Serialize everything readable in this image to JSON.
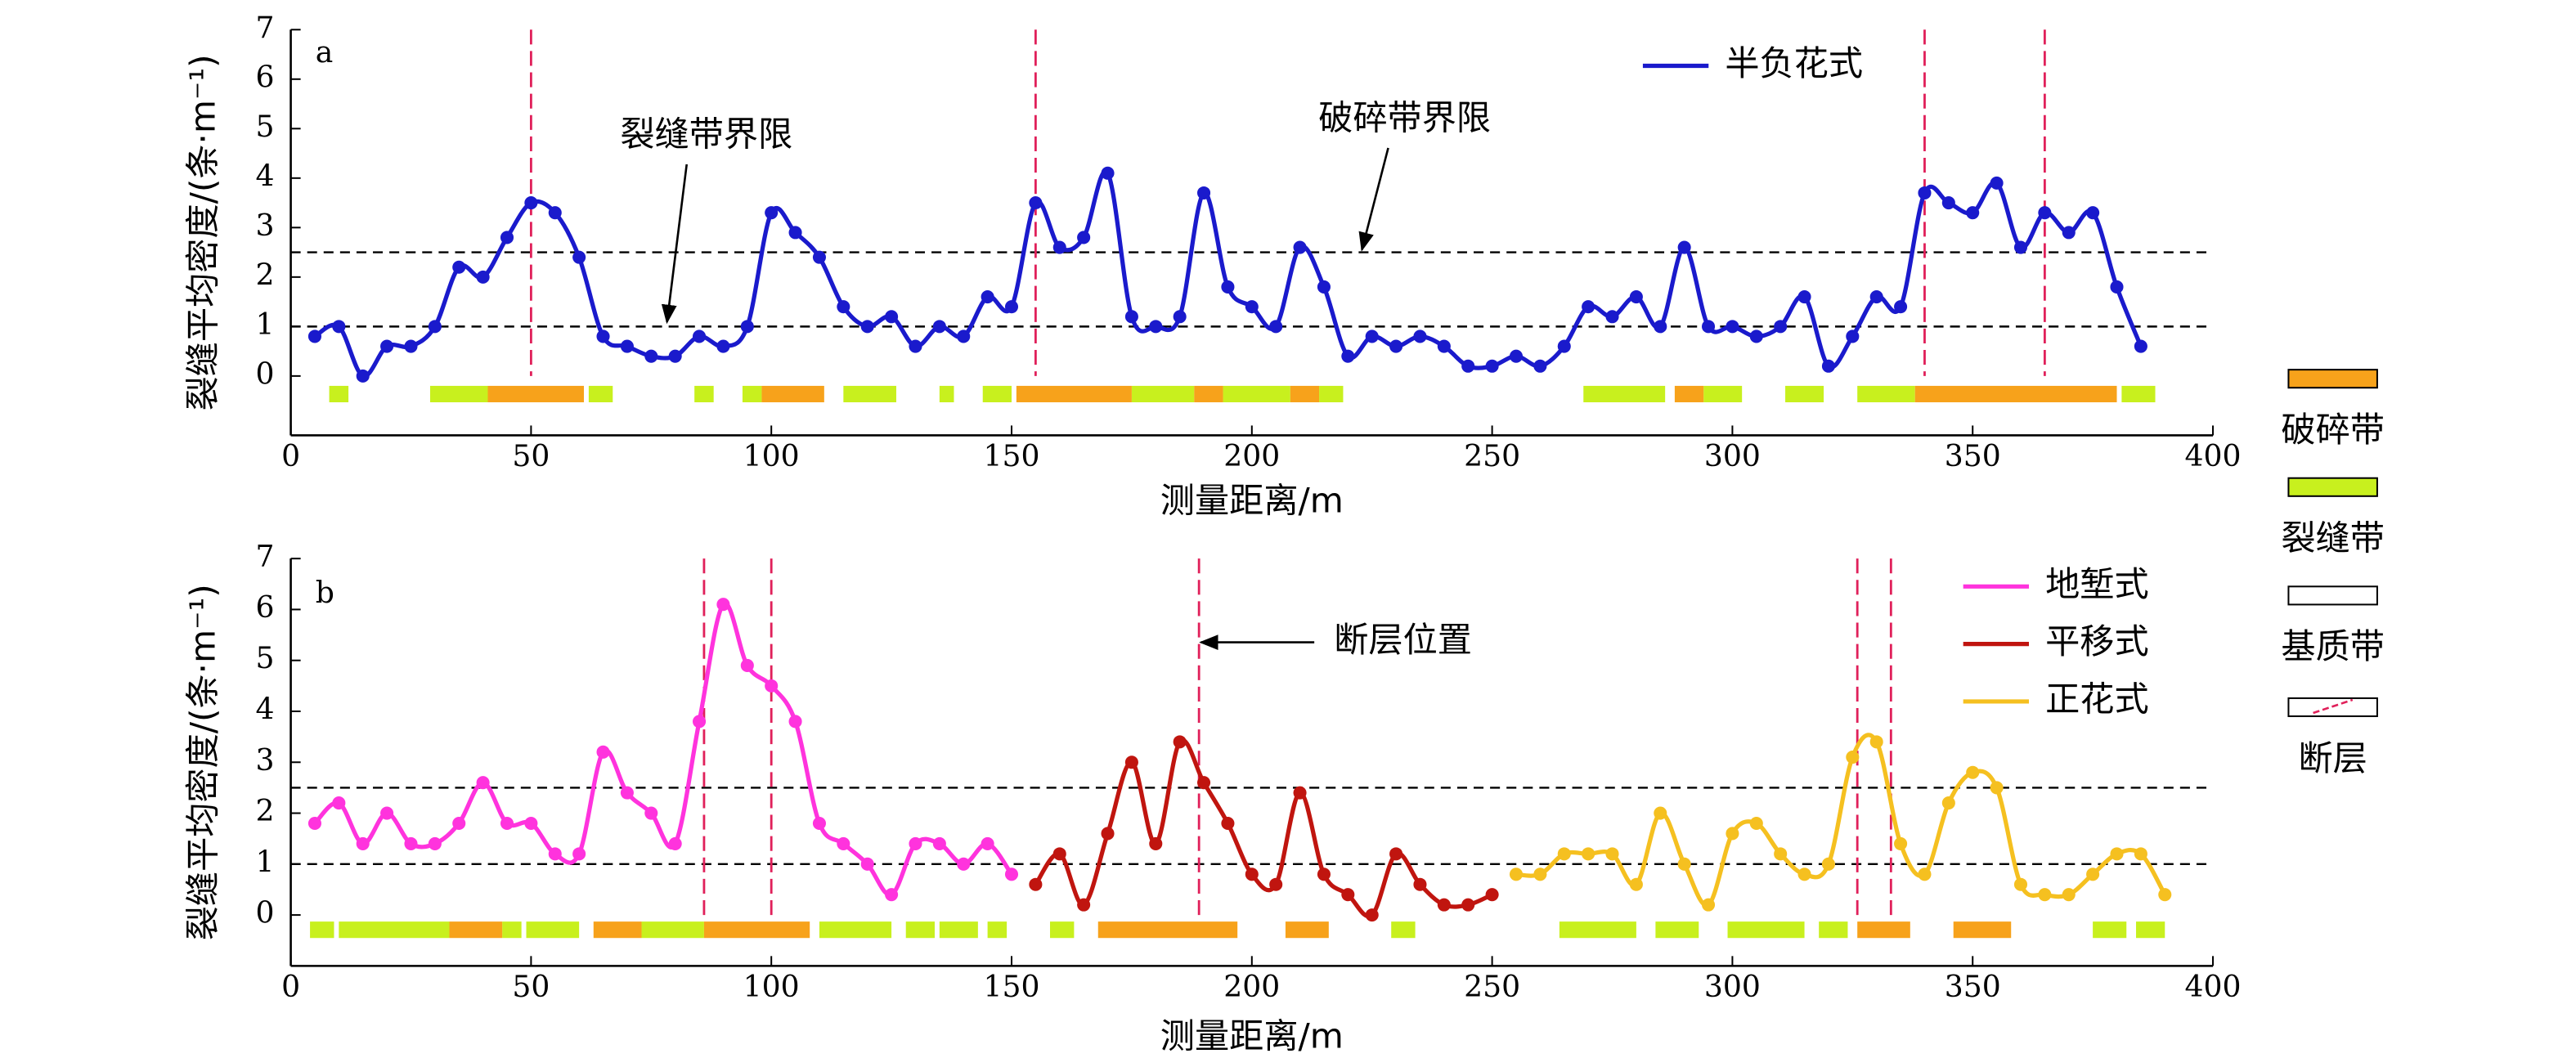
{
  "side_legend": [
    {
      "label": "破碎带",
      "color": "#f7a21b"
    },
    {
      "label": "裂缝带",
      "color": "#c8f01e"
    },
    {
      "label": "基质带",
      "color": "#ffffff"
    },
    {
      "label": "断层",
      "color": "#ffffff"
    }
  ],
  "chart_data": [
    {
      "type": "line",
      "panel_label": "a",
      "x_label": "测量距离/m",
      "y_label": "裂缝平均密度/(条·m⁻¹)",
      "xlim": [
        0,
        400
      ],
      "xticks": [
        0,
        50,
        100,
        150,
        200,
        250,
        300,
        350,
        400
      ],
      "ylim": [
        -1.2,
        7
      ],
      "yticks": [
        0,
        1,
        2,
        3,
        4,
        5,
        6,
        7
      ],
      "thresholds": [
        1,
        2.5
      ],
      "faults": [
        50,
        155,
        340,
        365
      ],
      "fault_color": "#e0205a",
      "annotations": [
        "裂缝带界限",
        "破碎带界限"
      ],
      "legend": "upper right",
      "series": [
        {
          "name": "半负花式",
          "color": "#1a1acc",
          "x": [
            5,
            10,
            15,
            20,
            25,
            30,
            35,
            40,
            45,
            50,
            55,
            60,
            65,
            70,
            75,
            80,
            85,
            90,
            95,
            100,
            105,
            110,
            115,
            120,
            125,
            130,
            135,
            140,
            145,
            150,
            155,
            160,
            165,
            170,
            175,
            180,
            185,
            190,
            195,
            200,
            205,
            210,
            215,
            220,
            225,
            230,
            235,
            240,
            245,
            250,
            255,
            260,
            265,
            270,
            275,
            280,
            285,
            290,
            295,
            300,
            305,
            310,
            315,
            320,
            325,
            330,
            335,
            340,
            345,
            350,
            355,
            360,
            365,
            370,
            375,
            380,
            385
          ],
          "values": [
            0.8,
            1.0,
            0,
            0.6,
            0.6,
            1.0,
            2.2,
            2.0,
            2.8,
            3.5,
            3.3,
            2.4,
            0.8,
            0.6,
            0.4,
            0.4,
            0.8,
            0.6,
            1.0,
            3.3,
            2.9,
            2.4,
            1.4,
            1.0,
            1.2,
            0.6,
            1.0,
            0.8,
            1.6,
            1.4,
            3.5,
            2.6,
            2.8,
            4.1,
            1.2,
            1.0,
            1.2,
            3.7,
            1.8,
            1.4,
            1.0,
            2.6,
            1.8,
            0.4,
            0.8,
            0.6,
            0.8,
            0.6,
            0.2,
            0.2,
            0.4,
            0.2,
            0.6,
            1.4,
            1.2,
            1.6,
            1.0,
            2.6,
            1.0,
            1.0,
            0.8,
            1.0,
            1.6,
            0.2,
            0.8,
            1.6,
            1.4,
            3.7,
            3.5,
            3.3,
            3.9,
            2.6,
            3.3,
            2.9,
            3.3,
            1.8,
            0.6
          ]
        }
      ],
      "broken_zones": [
        [
          41,
          61
        ],
        [
          98,
          111
        ],
        [
          151,
          175
        ],
        [
          188,
          194
        ],
        [
          208,
          214
        ],
        [
          288,
          294
        ],
        [
          338,
          380
        ]
      ],
      "fracture_zones": [
        [
          8,
          12
        ],
        [
          29,
          41
        ],
        [
          62,
          67
        ],
        [
          84,
          88
        ],
        [
          94,
          98
        ],
        [
          115,
          126
        ],
        [
          135,
          138
        ],
        [
          144,
          150
        ],
        [
          175,
          188
        ],
        [
          194,
          208
        ],
        [
          214,
          219
        ],
        [
          269,
          286
        ],
        [
          294,
          302
        ],
        [
          311,
          319
        ],
        [
          326,
          338
        ],
        [
          381,
          388
        ]
      ]
    },
    {
      "type": "line",
      "panel_label": "b",
      "x_label": "测量距离/m",
      "y_label": "裂缝平均密度/(条·m⁻¹)",
      "xlim": [
        0,
        400
      ],
      "xticks": [
        0,
        50,
        100,
        150,
        200,
        250,
        300,
        350,
        400
      ],
      "ylim": [
        -1,
        7
      ],
      "yticks": [
        0,
        1,
        2,
        3,
        4,
        5,
        6,
        7
      ],
      "thresholds": [
        1,
        2.5
      ],
      "faults": [
        86,
        100,
        189,
        326,
        333
      ],
      "fault_color": "#e0205a",
      "annotations": [
        "断层位置"
      ],
      "legend": "upper right",
      "series": [
        {
          "name": "地堑式",
          "color": "#ff33dd",
          "x": [
            5,
            10,
            15,
            20,
            25,
            30,
            35,
            40,
            45,
            50,
            55,
            60,
            65,
            70,
            75,
            80,
            85,
            90,
            95,
            100,
            105,
            110,
            115,
            120,
            125,
            130,
            135,
            140,
            145,
            150
          ],
          "values": [
            1.8,
            2.2,
            1.4,
            2.0,
            1.4,
            1.4,
            1.8,
            2.6,
            1.8,
            1.8,
            1.2,
            1.2,
            3.2,
            2.4,
            2.0,
            1.4,
            3.8,
            6.1,
            4.9,
            4.5,
            3.8,
            1.8,
            1.4,
            1.0,
            0.4,
            1.4,
            1.4,
            1.0,
            1.4,
            0.8
          ]
        },
        {
          "name": "平移式",
          "color": "#c0150f",
          "x": [
            155,
            160,
            165,
            170,
            175,
            180,
            185,
            190,
            195,
            200,
            205,
            210,
            215,
            220,
            225,
            230,
            235,
            240,
            245,
            250
          ],
          "values": [
            0.6,
            1.2,
            0.2,
            1.6,
            3.0,
            1.4,
            3.4,
            2.6,
            1.8,
            0.8,
            0.6,
            2.4,
            0.8,
            0.4,
            0,
            1.2,
            0.6,
            0.2,
            0.2,
            0.4
          ]
        },
        {
          "name": "正花式",
          "color": "#f5c020",
          "x": [
            255,
            260,
            265,
            270,
            275,
            280,
            285,
            290,
            295,
            300,
            305,
            310,
            315,
            320,
            325,
            330,
            335,
            340,
            345,
            350,
            355,
            360,
            365,
            370,
            375,
            380,
            385,
            390
          ],
          "values": [
            0.8,
            0.8,
            1.2,
            1.2,
            1.2,
            0.6,
            2.0,
            1.0,
            0.2,
            1.6,
            1.8,
            1.2,
            0.8,
            1.0,
            3.1,
            3.4,
            1.4,
            0.8,
            2.2,
            2.8,
            2.5,
            0.6,
            0.4,
            0.4,
            0.8,
            1.2,
            1.2,
            0.4
          ]
        }
      ],
      "broken_zones": [
        [
          33,
          44
        ],
        [
          63,
          73
        ],
        [
          86,
          108
        ],
        [
          168,
          197
        ],
        [
          207,
          216
        ],
        [
          326,
          337
        ],
        [
          346,
          358
        ]
      ],
      "fracture_zones": [
        [
          4,
          9
        ],
        [
          10,
          33
        ],
        [
          44,
          48
        ],
        [
          49,
          60
        ],
        [
          73,
          86
        ],
        [
          110,
          125
        ],
        [
          128,
          134
        ],
        [
          135,
          143
        ],
        [
          145,
          149
        ],
        [
          158,
          163
        ],
        [
          229,
          234
        ],
        [
          264,
          280
        ],
        [
          284,
          293
        ],
        [
          299,
          315
        ],
        [
          318,
          324
        ],
        [
          375,
          382
        ],
        [
          384,
          390
        ]
      ]
    }
  ]
}
